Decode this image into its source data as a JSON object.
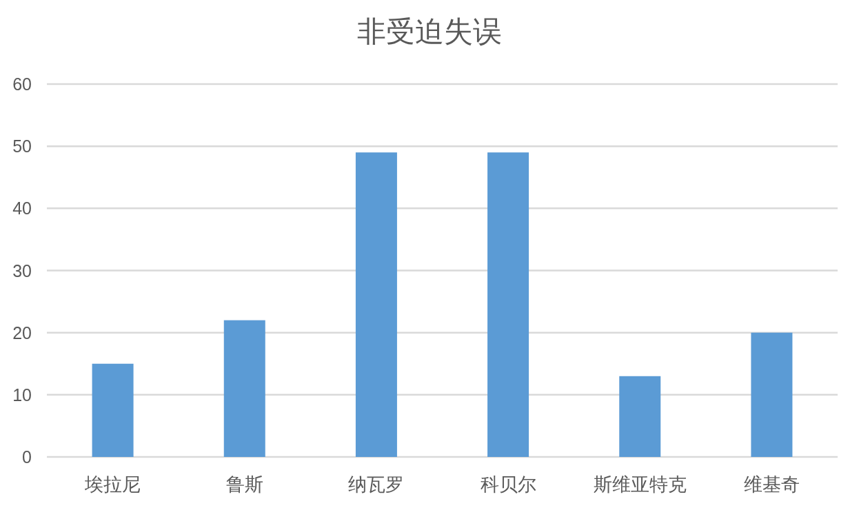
{
  "chart_data": {
    "type": "bar",
    "title": "非受迫失误",
    "categories": [
      "埃拉尼",
      "鲁斯",
      "纳瓦罗",
      "科贝尔",
      "斯维亚特克",
      "维基奇"
    ],
    "values": [
      15,
      22,
      49,
      49,
      13,
      20
    ],
    "color": "#5b9bd5",
    "ylim": [
      0,
      60
    ],
    "yticks": [
      0,
      10,
      20,
      30,
      40,
      50,
      60
    ],
    "grid": "y"
  }
}
